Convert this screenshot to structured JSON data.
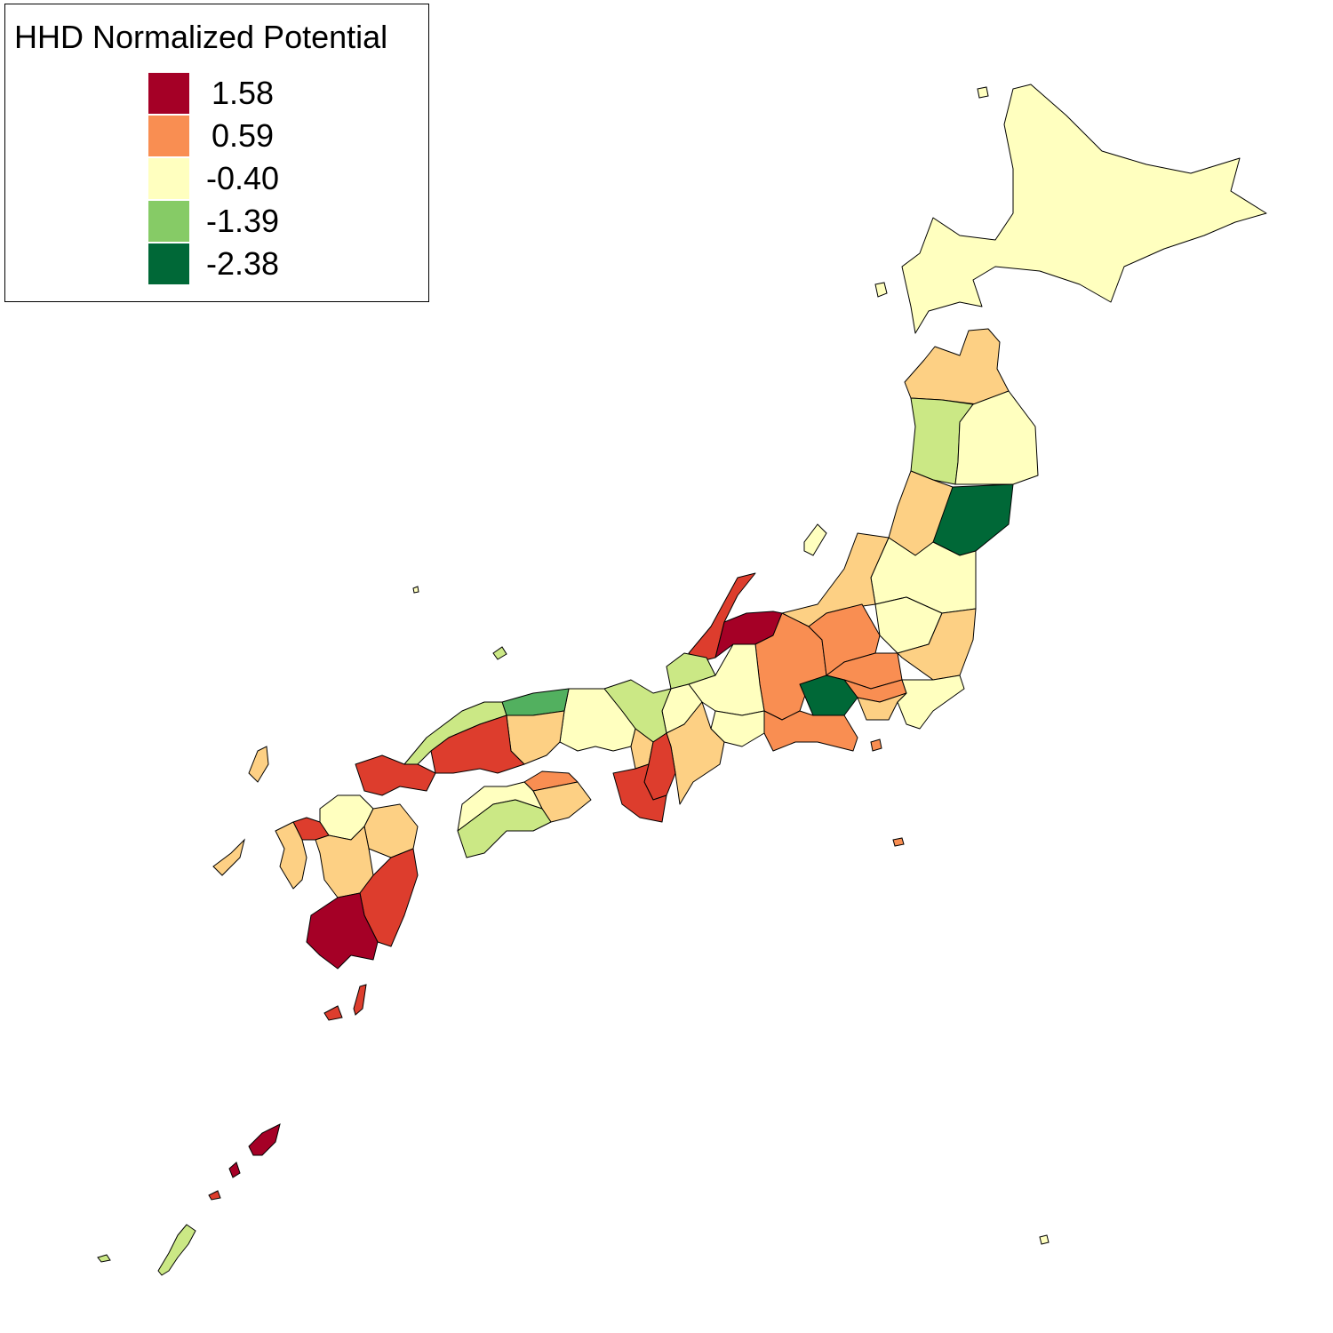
{
  "legend": {
    "title": "HHD Normalized Potential",
    "items": [
      {
        "label": "1.58",
        "color": "#a50026"
      },
      {
        "label": "0.59",
        "color": "#f98e52"
      },
      {
        "label": "-0.40",
        "color": "#ffffbf"
      },
      {
        "label": "-1.39",
        "color": "#86cb66"
      },
      {
        "label": "-2.38",
        "color": "#006837"
      }
    ]
  },
  "colors": {
    "red_dark": "#a50026",
    "red": "#dd3d2d",
    "orange": "#f98e52",
    "light_orange": "#fdd084",
    "pale_yellow": "#ffffbf",
    "light_green": "#cbe885",
    "green": "#52b05f",
    "dark_green": "#006837",
    "outline": "#000000"
  },
  "regions": [
    {
      "name": "Hokkaido",
      "fill": "pale_yellow"
    },
    {
      "name": "Aomori",
      "fill": "light_orange"
    },
    {
      "name": "Akita",
      "fill": "light_green"
    },
    {
      "name": "Iwate",
      "fill": "pale_yellow"
    },
    {
      "name": "Yamagata",
      "fill": "light_orange"
    },
    {
      "name": "Miyagi",
      "fill": "dark_green"
    },
    {
      "name": "Fukushima",
      "fill": "pale_yellow"
    },
    {
      "name": "Niigata",
      "fill": "light_orange"
    },
    {
      "name": "Ishikawa",
      "fill": "red"
    },
    {
      "name": "Toyama",
      "fill": "red_dark"
    },
    {
      "name": "Nagano",
      "fill": "orange"
    },
    {
      "name": "Gunma",
      "fill": "orange"
    },
    {
      "name": "Tochigi",
      "fill": "pale_yellow"
    },
    {
      "name": "Ibaraki",
      "fill": "light_orange"
    },
    {
      "name": "Saitama",
      "fill": "orange"
    },
    {
      "name": "Tokyo",
      "fill": "orange"
    },
    {
      "name": "Chiba",
      "fill": "pale_yellow"
    },
    {
      "name": "Kanagawa",
      "fill": "light_orange"
    },
    {
      "name": "Yamanashi",
      "fill": "dark_green"
    },
    {
      "name": "Shizuoka",
      "fill": "orange"
    },
    {
      "name": "Fukui",
      "fill": "light_green"
    },
    {
      "name": "Gifu",
      "fill": "pale_yellow"
    },
    {
      "name": "Aichi",
      "fill": "pale_yellow"
    },
    {
      "name": "Shiga",
      "fill": "pale_yellow"
    },
    {
      "name": "Kyoto",
      "fill": "light_green"
    },
    {
      "name": "Mie",
      "fill": "light_orange"
    },
    {
      "name": "Hyogo",
      "fill": "pale_yellow"
    },
    {
      "name": "Osaka",
      "fill": "light_orange"
    },
    {
      "name": "Nara",
      "fill": "red"
    },
    {
      "name": "Wakayama",
      "fill": "red"
    },
    {
      "name": "Tottori",
      "fill": "green"
    },
    {
      "name": "Shimane",
      "fill": "light_green"
    },
    {
      "name": "Okayama",
      "fill": "light_orange"
    },
    {
      "name": "Hiroshima",
      "fill": "red"
    },
    {
      "name": "Yamaguchi",
      "fill": "red"
    },
    {
      "name": "Kagawa",
      "fill": "orange"
    },
    {
      "name": "Tokushima",
      "fill": "light_orange"
    },
    {
      "name": "Ehime",
      "fill": "pale_yellow"
    },
    {
      "name": "Kochi",
      "fill": "light_green"
    },
    {
      "name": "Fukuoka",
      "fill": "pale_yellow"
    },
    {
      "name": "Saga",
      "fill": "red"
    },
    {
      "name": "Nagasaki",
      "fill": "light_orange"
    },
    {
      "name": "Oita",
      "fill": "light_orange"
    },
    {
      "name": "Kumamoto",
      "fill": "light_orange"
    },
    {
      "name": "Miyazaki",
      "fill": "red"
    },
    {
      "name": "Kagoshima",
      "fill": "red_dark"
    },
    {
      "name": "Okinawa",
      "fill": "light_green"
    }
  ]
}
